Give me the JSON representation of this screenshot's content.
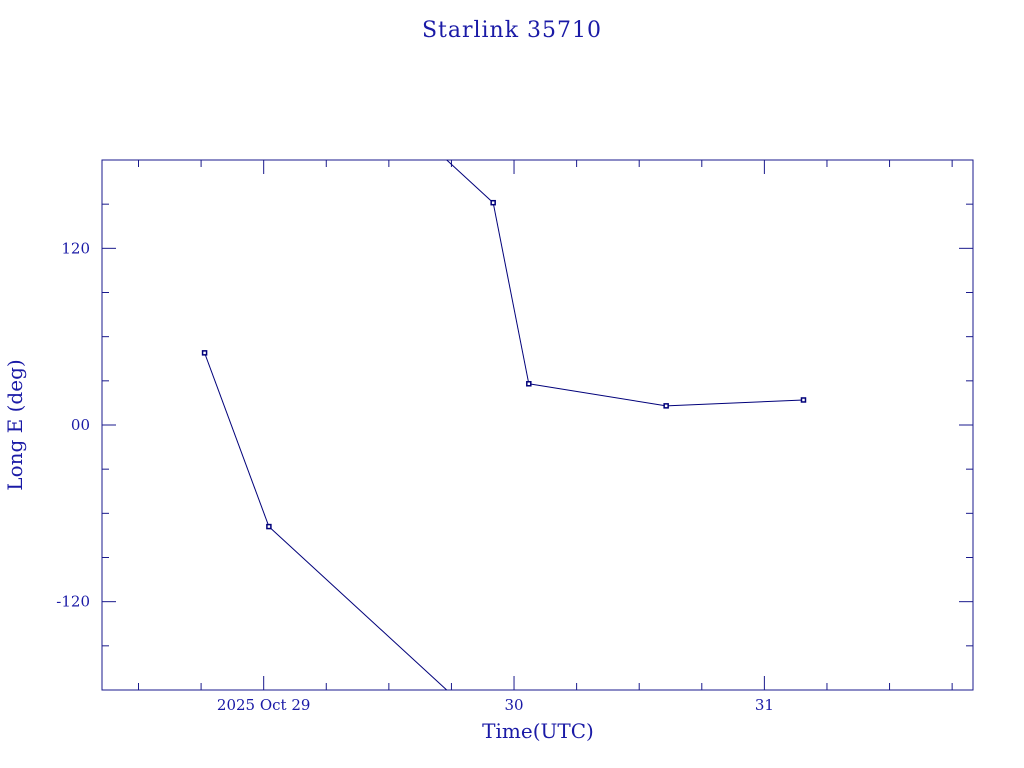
{
  "chart_data": {
    "type": "line",
    "title": "Starlink 35710",
    "xlabel": "Time(UTC)",
    "ylabel": "Long E (deg)",
    "x_tick_labels": [
      "2025 Oct 29",
      "30",
      "31"
    ],
    "x_tick_values": [
      "2025-10-29",
      "2025-10-30",
      "2025-10-31"
    ],
    "y_tick_labels": [
      "120",
      "00",
      "-120"
    ],
    "y_tick_values": [
      120,
      0,
      -120
    ],
    "xlim": [
      "2025-10-28T08:30",
      "2025-10-31T20:00"
    ],
    "ylim": [
      -180,
      180
    ],
    "y_wraps_at": [
      -180,
      180
    ],
    "series": [
      {
        "points": [
          {
            "x": "2025-10-28T18:20",
            "y": 49
          },
          {
            "x": "2025-10-29T00:30",
            "y": -69
          },
          {
            "x": "2025-10-29T22:00",
            "y": 151
          },
          {
            "x": "2025-10-30T01:25",
            "y": 28
          },
          {
            "x": "2025-10-30T14:35",
            "y": 13
          },
          {
            "x": "2025-10-31T03:45",
            "y": 17
          }
        ]
      }
    ],
    "colors": {
      "line": "#00007a",
      "text": "#1a1aa6",
      "frame": "#1a1a8c"
    }
  }
}
